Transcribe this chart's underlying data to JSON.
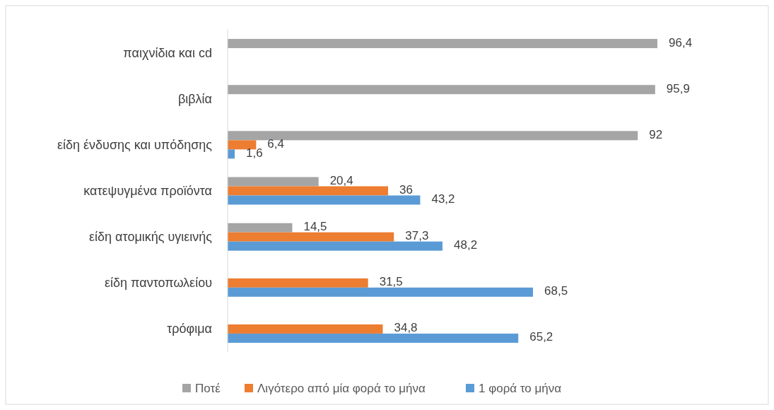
{
  "chart_data": {
    "type": "bar",
    "orientation": "horizontal",
    "categories": [
      "παιχνίδια και cd",
      "βιβλία",
      "είδη ένδυσης και υπόδησης",
      "κατεψυγμένα προϊόντα",
      "είδη ατομικής υγιεινής",
      "είδη παντοπωλείου",
      "τρόφιμα"
    ],
    "series": [
      {
        "name": "Ποτέ",
        "color": "#a5a5a5",
        "values": [
          96.4,
          95.9,
          92,
          20.4,
          14.5,
          null,
          null
        ],
        "value_labels": [
          "96,4",
          "95,9",
          "92",
          "20,4",
          "14,5",
          null,
          null
        ]
      },
      {
        "name": "Λιγότερο από μία φορά το μήνα",
        "color": "#ed7d31",
        "values": [
          null,
          null,
          6.4,
          36,
          37.3,
          31.5,
          34.8
        ],
        "value_labels": [
          null,
          null,
          "6,4",
          "36",
          "37,3",
          "31,5",
          "34,8"
        ]
      },
      {
        "name": "1 φορά το μήνα",
        "color": "#5b9bd5",
        "values": [
          null,
          null,
          1.6,
          43.2,
          48.2,
          68.5,
          65.2
        ],
        "value_labels": [
          null,
          null,
          "1,6",
          "43,2",
          "48,2",
          "68,5",
          "65,2"
        ]
      }
    ],
    "legend": "bottom"
  }
}
